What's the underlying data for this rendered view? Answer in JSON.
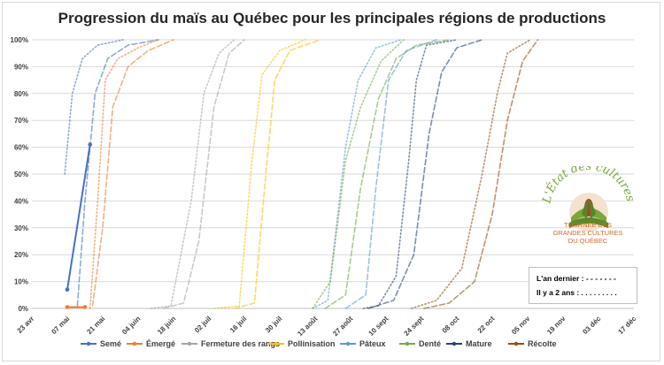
{
  "chart_data": {
    "type": "line",
    "title": "Progression du maïs au Québec pour les principales régions de productions",
    "y_ticks": [
      "0%",
      "10%",
      "20%",
      "30%",
      "40%",
      "50%",
      "60%",
      "70%",
      "80%",
      "90%",
      "100%"
    ],
    "ylim": [
      0,
      100
    ],
    "x_ticks": [
      "23 avr",
      "07 mai",
      "21 mai",
      "04 juin",
      "18 juin",
      "02 juil",
      "16 juil",
      "30 juil",
      "13 août",
      "27 août",
      "10 sept",
      "24 sept",
      "08 oct",
      "22 oct",
      "05 nov",
      "19 nov",
      "03 déc",
      "17 déc"
    ],
    "grid": "horizontal",
    "legend_position": "bottom",
    "line_styles": {
      "current": "solid",
      "last_year": "dashed",
      "two_years_ago": "dotted"
    },
    "series": [
      {
        "name": "Semé",
        "color": "#4472c4",
        "current": [
          [
            14,
            7
          ],
          [
            23,
            61
          ]
        ],
        "last_year": [
          [
            18,
            1
          ],
          [
            21,
            40
          ],
          [
            25,
            80
          ],
          [
            30,
            93
          ],
          [
            38,
            98
          ],
          [
            50,
            100
          ]
        ],
        "two_years_ago": [
          [
            13,
            50
          ],
          [
            16,
            80
          ],
          [
            20,
            93
          ],
          [
            26,
            98
          ],
          [
            36,
            100
          ]
        ]
      },
      {
        "name": "Émergé",
        "color": "#ed7d31",
        "current": [
          [
            14,
            0.5
          ],
          [
            21,
            0.5
          ]
        ],
        "last_year": [
          [
            24,
            1
          ],
          [
            28,
            30
          ],
          [
            32,
            75
          ],
          [
            38,
            90
          ],
          [
            46,
            96
          ],
          [
            56,
            100
          ]
        ],
        "two_years_ago": [
          [
            23,
            0
          ],
          [
            26,
            40
          ],
          [
            29,
            85
          ],
          [
            34,
            93
          ],
          [
            42,
            97
          ],
          [
            50,
            100
          ]
        ]
      },
      {
        "name": "Fermeture des rangs",
        "color": "#a5a5a5",
        "last_year": [
          [
            52,
            0
          ],
          [
            60,
            2
          ],
          [
            66,
            25
          ],
          [
            72,
            75
          ],
          [
            78,
            95
          ],
          [
            84,
            100
          ]
        ],
        "two_years_ago": [
          [
            47,
            0
          ],
          [
            55,
            1
          ],
          [
            63,
            40
          ],
          [
            68,
            80
          ],
          [
            74,
            95
          ],
          [
            80,
            100
          ]
        ]
      },
      {
        "name": "Pollinisation",
        "color": "#ffc000",
        "last_year": [
          [
            80,
            0
          ],
          [
            88,
            2
          ],
          [
            92,
            45
          ],
          [
            96,
            85
          ],
          [
            102,
            96
          ],
          [
            114,
            100
          ]
        ],
        "two_years_ago": [
          [
            72,
            0
          ],
          [
            82,
            1
          ],
          [
            87,
            55
          ],
          [
            91,
            87
          ],
          [
            98,
            96
          ],
          [
            108,
            100
          ]
        ]
      },
      {
        "name": "Pâteux",
        "color": "#5b9bd5",
        "last_year": [
          [
            124,
            0
          ],
          [
            132,
            5
          ],
          [
            136,
            45
          ],
          [
            141,
            85
          ],
          [
            148,
            96
          ],
          [
            160,
            100
          ]
        ],
        "two_years_ago": [
          [
            111,
            0
          ],
          [
            117,
            3
          ],
          [
            124,
            60
          ],
          [
            129,
            85
          ],
          [
            136,
            97
          ],
          [
            146,
            100
          ]
        ]
      },
      {
        "name": "Denté",
        "color": "#70ad47",
        "last_year": [
          [
            116,
            0
          ],
          [
            124,
            5
          ],
          [
            130,
            45
          ],
          [
            137,
            78
          ],
          [
            144,
            93
          ],
          [
            152,
            98
          ],
          [
            165,
            100
          ]
        ],
        "two_years_ago": [
          [
            111,
            0
          ],
          [
            118,
            10
          ],
          [
            124,
            55
          ],
          [
            130,
            75
          ],
          [
            138,
            92
          ],
          [
            147,
            100
          ]
        ]
      },
      {
        "name": "Mature",
        "color": "#264478",
        "last_year": [
          [
            133,
            0
          ],
          [
            143,
            3
          ],
          [
            151,
            20
          ],
          [
            157,
            65
          ],
          [
            162,
            88
          ],
          [
            168,
            97
          ],
          [
            178,
            100
          ]
        ],
        "two_years_ago": [
          [
            131,
            0
          ],
          [
            137,
            1
          ],
          [
            144,
            12
          ],
          [
            149,
            55
          ],
          [
            152,
            85
          ],
          [
            156,
            98
          ],
          [
            168,
            100
          ]
        ]
      },
      {
        "name": "Récolte",
        "color": "#9e480e",
        "last_year": [
          [
            155,
            0
          ],
          [
            165,
            2
          ],
          [
            175,
            10
          ],
          [
            182,
            35
          ],
          [
            188,
            70
          ],
          [
            194,
            92
          ],
          [
            200,
            100
          ]
        ],
        "two_years_ago": [
          [
            150,
            0
          ],
          [
            160,
            3
          ],
          [
            170,
            15
          ],
          [
            178,
            50
          ],
          [
            184,
            80
          ],
          [
            188,
            95
          ],
          [
            197,
            100
          ]
        ]
      }
    ],
    "x_unit_note_hidden": ""
  },
  "logo": {
    "brand": "L'État des cultures",
    "caption_lines": [
      "TOURNÉE DES",
      "GRANDES CULTURES",
      "DU QUÉBEC"
    ]
  },
  "line_key": {
    "last_year_label": "L'an dernier : - - - - - - -",
    "two_years_label": "Il y a 2 ans : . . . . . . . . ."
  }
}
